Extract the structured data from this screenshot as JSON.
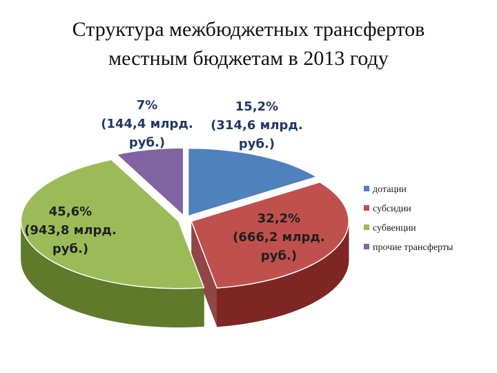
{
  "title": {
    "line1": "Структура межбюджетных трансфертов",
    "line2": "местным бюджетам в 2013 году"
  },
  "chart_data": {
    "type": "pie",
    "title": "Структура межбюджетных трансфертов местным бюджетам в 2013 году",
    "legend_position": "right",
    "slices": [
      {
        "name": "дотации",
        "percent": 15.2,
        "value": 314.6,
        "label_lines": [
          "15,2%",
          "(314,6 млрд.",
          "руб.)"
        ],
        "color": "#4f81bd",
        "dark": "#2f5486"
      },
      {
        "name": "субсидии",
        "percent": 32.2,
        "value": 666.2,
        "label_lines": [
          "32,2%",
          "(666,2 млрд.",
          "руб.)"
        ],
        "color": "#c0504d",
        "dark": "#7d2624"
      },
      {
        "name": "субвенции",
        "percent": 45.6,
        "value": 943.8,
        "label_lines": [
          "45,6%",
          "(943,8 млрд.",
          "руб.)"
        ],
        "color": "#9bbb59",
        "dark": "#5e7a2a"
      },
      {
        "name": "прочие трансферты",
        "percent": 7.0,
        "value": 144.4,
        "label_lines": [
          "7%",
          "(144,4 млрд.",
          "руб.)"
        ],
        "color": "#8064a2",
        "dark": "#4b3866"
      }
    ]
  }
}
